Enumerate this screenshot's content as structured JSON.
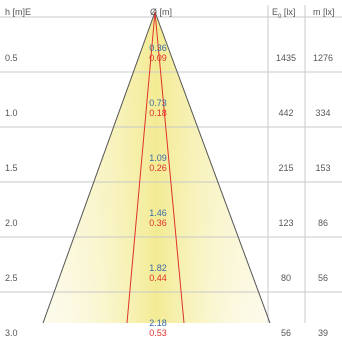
{
  "header": {
    "h_label": "h [m]E",
    "d_label": "Ø [m]",
    "e0_label": "E",
    "e0_sub": "0",
    "e0_unit": " [lx]",
    "em_label": "m [lx]"
  },
  "rows": [
    {
      "h": "0.5",
      "d_outer": "0.36",
      "d_inner": "0.09",
      "e0": "1435",
      "em": "1276"
    },
    {
      "h": "1.0",
      "d_outer": "0.73",
      "d_inner": "0.18",
      "e0": "442",
      "em": "334"
    },
    {
      "h": "1.5",
      "d_outer": "1.09",
      "d_inner": "0.26",
      "e0": "215",
      "em": "153"
    },
    {
      "h": "2.0",
      "d_outer": "1.46",
      "d_inner": "0.36",
      "e0": "123",
      "em": "86"
    },
    {
      "h": "2.5",
      "d_outer": "1.82",
      "d_inner": "0.44",
      "e0": "80",
      "em": "56"
    },
    {
      "h": "3.0",
      "d_outer": "2.18",
      "d_inner": "0.53",
      "e0": "56",
      "em": "39"
    }
  ],
  "colors": {
    "beam_fill": "#f3ec9e",
    "beam_center": "#f7f2b8",
    "outer_line": "#555555",
    "inner_line": "#e0322a",
    "grid": "#c8c8c8",
    "outer_value": "#3a6aa8",
    "inner_value": "#e0322a"
  }
}
